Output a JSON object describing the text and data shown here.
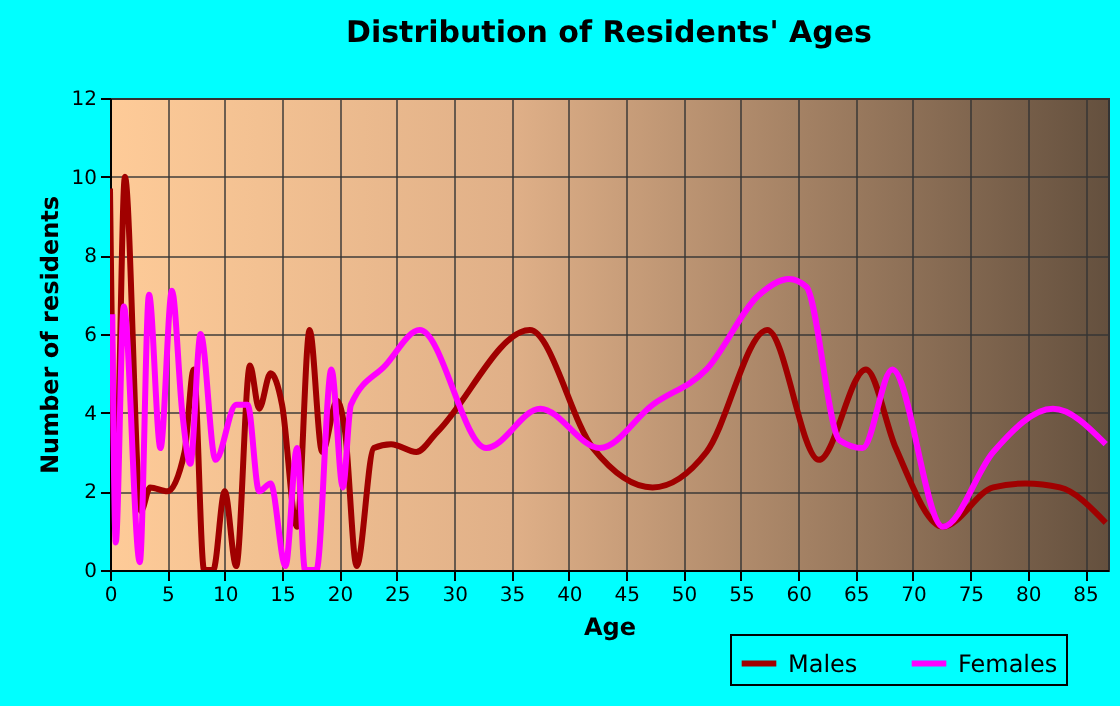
{
  "chart_data": {
    "type": "line",
    "title": "Distribution of Residents' Ages",
    "xlabel": "Age",
    "ylabel": "Number of residents",
    "xlim": [
      0,
      87
    ],
    "xticks": [
      0,
      5,
      10,
      15,
      20,
      25,
      30,
      35,
      40,
      45,
      50,
      55,
      60,
      65,
      70,
      75,
      80,
      85
    ],
    "ylim": [
      0,
      12
    ],
    "yticks": [
      0,
      2,
      4,
      6,
      8,
      10,
      12
    ],
    "grid": true,
    "legend": "bottom",
    "series": [
      {
        "name": "Males",
        "color": "#a00000",
        "x": [
          0,
          0.5,
          1.3,
          2.7,
          3.5,
          5,
          6.5,
          7.3,
          8.2,
          9,
          10,
          11,
          12.2,
          13,
          14,
          15,
          16.3,
          17.4,
          18.5,
          19.8,
          20.5,
          21.5,
          23,
          24.5,
          26.7,
          28.5,
          36.6,
          42.1,
          47.3,
          52,
          57.3,
          61.8,
          65.9,
          68.5,
          72.6,
          77,
          79.8,
          82.8,
          86.8
        ],
        "values": [
          9.7,
          2,
          10,
          1.5,
          2.1,
          2,
          3,
          5.1,
          0,
          0,
          2,
          0.1,
          5.2,
          4.1,
          5,
          4.2,
          1.1,
          6.1,
          3,
          4.3,
          3.5,
          0.1,
          3.1,
          3.2,
          3,
          3.5,
          6.1,
          3.1,
          2.1,
          3,
          6.1,
          2.8,
          5.1,
          3.1,
          1.1,
          2.1,
          2.2,
          2.1,
          1.2
        ]
      },
      {
        "name": "Females",
        "color": "#ff00ff",
        "x": [
          0.2,
          0.5,
          1.2,
          2.6,
          3.4,
          4.4,
          5.4,
          6.3,
          7,
          7.9,
          9.2,
          11,
          12,
          13,
          14,
          15.3,
          16.3,
          17,
          18,
          19.3,
          20.3,
          21,
          24,
          27,
          32.8,
          37.5,
          42.7,
          47.3,
          52,
          56.6,
          59.2,
          60.7,
          63.6,
          65.6,
          68.2,
          72.6,
          77,
          82.2,
          86.8
        ],
        "values": [
          6.5,
          0.7,
          6.7,
          0.2,
          7,
          3.1,
          7.1,
          4,
          2.7,
          6,
          2.8,
          4.2,
          4.2,
          2,
          2.2,
          0.1,
          3.1,
          0,
          0,
          5.1,
          2.1,
          4.2,
          5.2,
          6.1,
          3.1,
          4.1,
          3.1,
          4.2,
          5.1,
          7,
          7.4,
          7.2,
          3.3,
          3.1,
          5.1,
          1.1,
          3,
          4.1,
          3.2
        ]
      }
    ]
  }
}
